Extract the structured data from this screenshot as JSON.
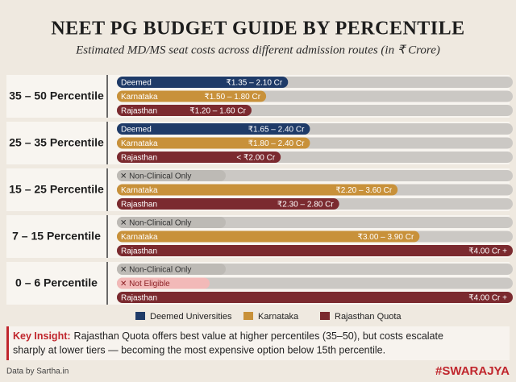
{
  "chart_data": {
    "type": "range-bar",
    "title": "NEET PG BUDGET GUIDE BY PERCENTILE",
    "subtitle": "Estimated MD/MS seat costs across different admission routes (in ₹ Crore)",
    "groups": [
      {
        "label": "35 – 50 Percentile",
        "rows": [
          {
            "name": "Deemed",
            "color": "#1f3b68",
            "low": 1.35,
            "high": 2.1,
            "label": "₹1.35 – 2.10 Cr"
          },
          {
            "name": "Karnataka",
            "color": "#c8913a",
            "low": 1.5,
            "high": 1.8,
            "label": "₹1.50 – 1.80 Cr"
          },
          {
            "name": "Rajasthan",
            "color": "#7b2a2f",
            "low": 1.2,
            "high": 1.6,
            "label": "₹1.20 – 1.60 Cr"
          }
        ]
      },
      {
        "label": "25 – 35 Percentile",
        "rows": [
          {
            "name": "Deemed",
            "color": "#1f3b68",
            "low": 1.65,
            "high": 2.4,
            "label": "₹1.65 – 2.40 Cr"
          },
          {
            "name": "Karnataka",
            "color": "#c8913a",
            "low": 1.8,
            "high": 2.4,
            "label": "₹1.80 – 2.40 Cr"
          },
          {
            "name": "Rajasthan",
            "color": "#7b2a2f",
            "low": null,
            "high": 2.0,
            "label": "< ₹2.00 Cr"
          }
        ]
      },
      {
        "label": "15 – 25 Percentile",
        "rows": [
          {
            "status": "✕ Non-Clinical Only",
            "color": "#bdbab5"
          },
          {
            "name": "Karnataka",
            "color": "#c8913a",
            "low": 2.2,
            "high": 3.6,
            "label": "₹2.20 – 3.60 Cr"
          },
          {
            "name": "Rajasthan",
            "color": "#7b2a2f",
            "low": 2.3,
            "high": 2.8,
            "label": "₹2.30 – 2.80 Cr"
          }
        ]
      },
      {
        "label": "7 – 15 Percentile",
        "rows": [
          {
            "status": "✕ Non-Clinical Only",
            "color": "#bdbab5"
          },
          {
            "name": "Karnataka",
            "color": "#c8913a",
            "low": 3.0,
            "high": 3.9,
            "label": "₹3.00 – 3.90 Cr"
          },
          {
            "name": "Rajasthan",
            "color": "#7b2a2f",
            "low": 4.0,
            "high": null,
            "label": "₹4.00 Cr +"
          }
        ]
      },
      {
        "label": "0 – 6 Percentile",
        "rows": [
          {
            "status": "✕ Non-Clinical Only",
            "color": "#bdbab5"
          },
          {
            "status": "✕ Not Eligible",
            "color": "#f2b9b8"
          },
          {
            "name": "Rajasthan",
            "color": "#7b2a2f",
            "low": 4.0,
            "high": null,
            "label": "₹4.00 Cr +"
          }
        ]
      }
    ],
    "legend": [
      {
        "name": "Deemed Universities",
        "color": "#1f3b68"
      },
      {
        "name": "Karnataka",
        "color": "#c8913a"
      },
      {
        "name": "Rajasthan Quota",
        "color": "#7b2a2f"
      }
    ],
    "insight": {
      "lead": "Key Insight:",
      "lines": [
        "Rajasthan Quota offers best value at higher percentiles (35–50), but costs escalate",
        "sharply at lower tiers — becoming the most expensive option below 15th percentile."
      ]
    },
    "source": "Data by Sartha.in",
    "brand": "#SWARAJYA"
  }
}
